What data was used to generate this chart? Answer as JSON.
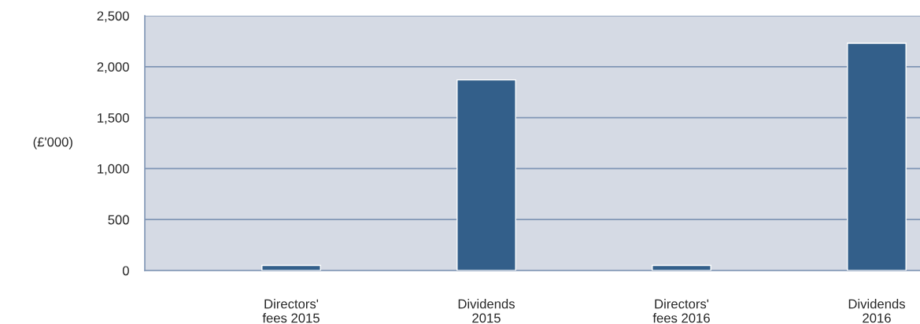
{
  "chart_data": {
    "type": "bar",
    "ylabel": "(£'000)",
    "categories": [
      null,
      "Directors'\nfees 2015",
      null,
      "Dividends\n2015",
      null,
      "Directors'\nfees 2016",
      null,
      "Dividends\n2016"
    ],
    "values": [
      null,
      50,
      null,
      1870,
      null,
      50,
      null,
      2230
    ],
    "color": "#335f8a",
    "ylim": [
      0,
      2500
    ],
    "yticks": [
      {
        "value": 0,
        "label": "0"
      },
      {
        "value": 500,
        "label": "500"
      },
      {
        "value": 1000,
        "label": "1,000"
      },
      {
        "value": 1500,
        "label": "1,500"
      },
      {
        "value": 2000,
        "label": "2,000"
      },
      {
        "value": 2500,
        "label": "2,500"
      }
    ],
    "grid": "y",
    "legend": false
  }
}
